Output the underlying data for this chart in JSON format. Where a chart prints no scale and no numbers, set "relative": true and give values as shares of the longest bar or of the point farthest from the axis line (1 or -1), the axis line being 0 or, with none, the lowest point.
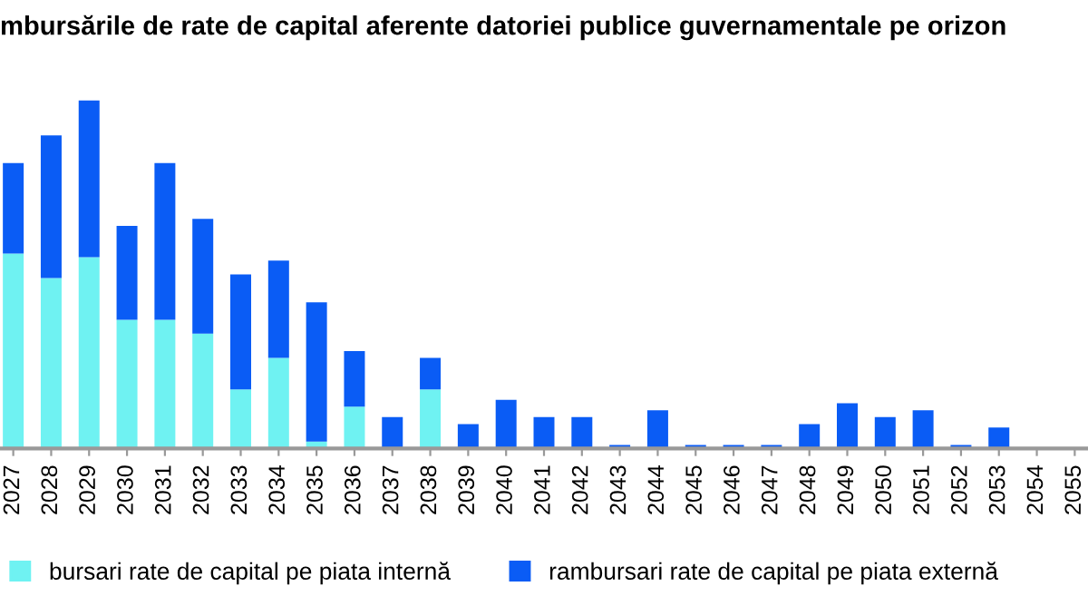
{
  "chart_data": {
    "type": "bar",
    "title": "mbursările de rate de capital aferente datoriei publice guvernamentale pe orizon",
    "relative": true,
    "stacked": true,
    "legend": "bottom",
    "grid": false,
    "categories": [
      "2027",
      "2028",
      "2029",
      "2030",
      "2031",
      "2032",
      "2033",
      "2034",
      "2035",
      "2036",
      "2037",
      "2038",
      "2039",
      "2040",
      "2041",
      "2042",
      "2043",
      "2044",
      "2045",
      "2046",
      "2047",
      "2048",
      "2049",
      "2050",
      "2051",
      "2052",
      "2053",
      "2054",
      "2055"
    ],
    "series": [
      {
        "name": "bursari rate de capital pe piata internă",
        "color": "#6ff2f2",
        "values": [
          0.56,
          0.49,
          0.55,
          0.37,
          0.37,
          0.33,
          0.17,
          0.26,
          0.02,
          0.12,
          0,
          0.17,
          0,
          0,
          0,
          0,
          0,
          0,
          0,
          0,
          0,
          0,
          0,
          0,
          0,
          0,
          0,
          0,
          0
        ]
      },
      {
        "name": "rambursari rate de capital pe piata externă",
        "color": "#0a5cf5",
        "values": [
          0.26,
          0.41,
          0.45,
          0.27,
          0.45,
          0.33,
          0.33,
          0.28,
          0.4,
          0.16,
          0.09,
          0.09,
          0.07,
          0.14,
          0.09,
          0.09,
          0.01,
          0.11,
          0.01,
          0.01,
          0.01,
          0.07,
          0.13,
          0.09,
          0.11,
          0.01,
          0.06,
          0,
          0
        ]
      }
    ]
  }
}
